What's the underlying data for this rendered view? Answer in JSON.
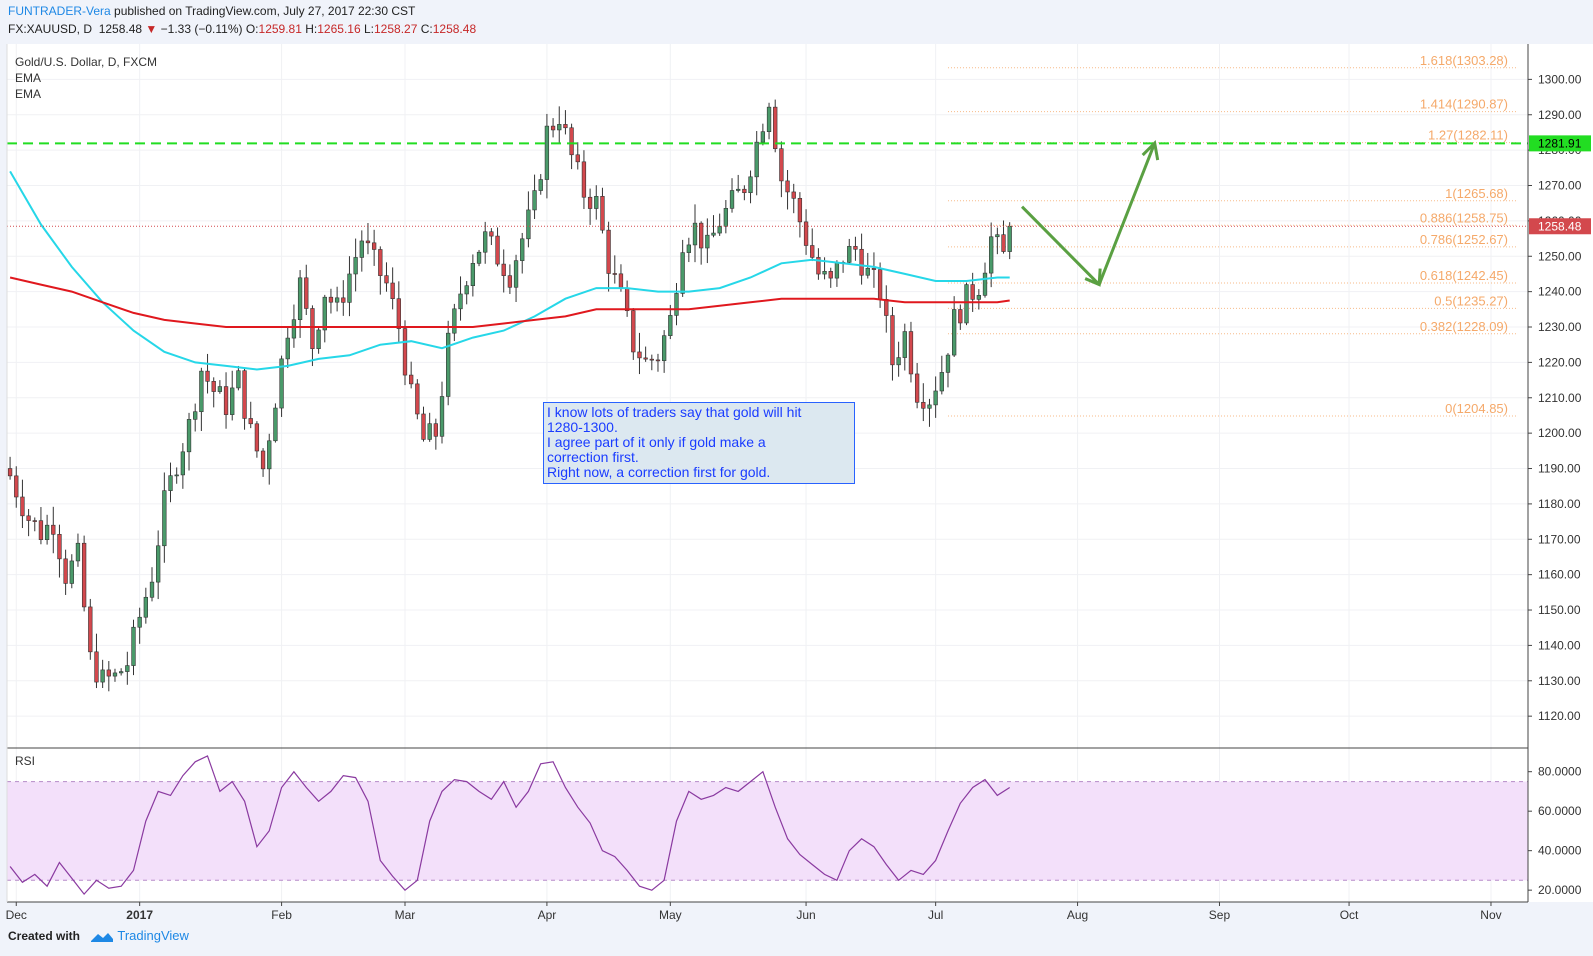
{
  "header": {
    "author": "FUNTRADER-Vera",
    "published": " published on TradingView.com, July 27, 2017 22:30 CST",
    "symbol": "FX:XAUUSD, D",
    "last": "1258.48",
    "change_arrow": "▼",
    "change": "−1.33 (−0.11%)",
    "o_label": "O:",
    "o": "1259.81",
    "h_label": "H:",
    "h": "1265.16",
    "l_label": "L:",
    "l": "1258.27",
    "c_label": "C:",
    "c": "1258.48"
  },
  "legend": {
    "title": "Gold/U.S. Dollar, D, FXCM",
    "ind1": "EMA",
    "ind2": "EMA"
  },
  "rsi_label": "RSI",
  "note": {
    "lines": [
      "I know lots of traders say that gold will hit",
      "1280-1300.",
      "I agree part of it only if gold make a",
      "correction first.",
      "Right now, a correction first for gold."
    ]
  },
  "footer": {
    "created": "Created with",
    "brand": "TradingView"
  },
  "colors": {
    "up": "#4a9a6a",
    "down": "#d3484d",
    "ema_fast": "#26d7e8",
    "ema_slow": "#e0181e",
    "fib": "#f5a96a",
    "resistance": "#22dd22",
    "arrow": "#5aa042",
    "rsi": "#8a3aa0",
    "rsi_band": "#f3e0fa"
  },
  "chart_data": {
    "type": "candlestick",
    "price_range": [
      1111,
      1310
    ],
    "price_ticks": [
      1120,
      1130,
      1140,
      1150,
      1160,
      1170,
      1180,
      1190,
      1200,
      1210,
      1220,
      1230,
      1240,
      1250,
      1260,
      1270,
      1280,
      1290,
      1300
    ],
    "last_price": 1258.48,
    "last_label": "1258.48",
    "resistance": 1281.91,
    "resistance_label": "1281.91",
    "month_labels": [
      "Dec",
      "2017",
      "Feb",
      "Mar",
      "Apr",
      "May",
      "Jun",
      "Jul",
      "Aug",
      "Sep",
      "Oct",
      "Nov"
    ],
    "month_x": [
      1,
      21,
      44,
      64,
      87,
      107,
      129,
      150,
      173,
      196,
      217,
      240
    ],
    "candle_count": 168,
    "axis_bar_range": [
      -0.5,
      246
    ],
    "fib_levels": [
      {
        "label": "1.618(1303.28)",
        "value": 1303.28
      },
      {
        "label": "1.414(1290.87)",
        "value": 1290.87
      },
      {
        "label": "1.27(1282.11)",
        "value": 1282.11
      },
      {
        "label": "1(1265.68)",
        "value": 1265.68
      },
      {
        "label": "0.886(1258.75)",
        "value": 1258.75
      },
      {
        "label": "0.786(1252.67)",
        "value": 1252.67
      },
      {
        "label": "0.618(1242.45)",
        "value": 1242.45
      },
      {
        "label": "0.5(1235.27)",
        "value": 1235.27
      },
      {
        "label": "0.382(1228.09)",
        "value": 1228.09
      },
      {
        "label": "0(1204.85)",
        "value": 1204.85
      }
    ],
    "close_path": [
      [
        0,
        1188
      ],
      [
        3,
        1176
      ],
      [
        5,
        1172
      ],
      [
        7,
        1175
      ],
      [
        9,
        1160
      ],
      [
        11,
        1165
      ],
      [
        13,
        1136
      ],
      [
        15,
        1130
      ],
      [
        17,
        1131
      ],
      [
        19,
        1135
      ],
      [
        21,
        1148
      ],
      [
        23,
        1160
      ],
      [
        25,
        1180
      ],
      [
        27,
        1192
      ],
      [
        29,
        1202
      ],
      [
        31,
        1218
      ],
      [
        33,
        1212
      ],
      [
        35,
        1208
      ],
      [
        37,
        1215
      ],
      [
        39,
        1200
      ],
      [
        41,
        1190
      ],
      [
        43,
        1210
      ],
      [
        45,
        1230
      ],
      [
        47,
        1242
      ],
      [
        49,
        1225
      ],
      [
        51,
        1240
      ],
      [
        53,
        1235
      ],
      [
        55,
        1245
      ],
      [
        57,
        1255
      ],
      [
        59,
        1248
      ],
      [
        61,
        1242
      ],
      [
        63,
        1230
      ],
      [
        65,
        1210
      ],
      [
        67,
        1198
      ],
      [
        69,
        1200
      ],
      [
        71,
        1225
      ],
      [
        73,
        1240
      ],
      [
        75,
        1250
      ],
      [
        77,
        1255
      ],
      [
        79,
        1250
      ],
      [
        81,
        1245
      ],
      [
        83,
        1255
      ],
      [
        85,
        1265
      ],
      [
        87,
        1285
      ],
      [
        89,
        1290
      ],
      [
        91,
        1278
      ],
      [
        93,
        1268
      ],
      [
        95,
        1265
      ],
      [
        97,
        1248
      ],
      [
        99,
        1238
      ],
      [
        101,
        1225
      ],
      [
        103,
        1220
      ],
      [
        105,
        1222
      ],
      [
        107,
        1232
      ],
      [
        109,
        1255
      ],
      [
        111,
        1258
      ],
      [
        113,
        1252
      ],
      [
        115,
        1260
      ],
      [
        117,
        1265
      ],
      [
        119,
        1270
      ],
      [
        121,
        1282
      ],
      [
        123,
        1295
      ],
      [
        125,
        1272
      ],
      [
        127,
        1265
      ],
      [
        129,
        1255
      ],
      [
        131,
        1245
      ],
      [
        133,
        1242
      ],
      [
        135,
        1250
      ],
      [
        137,
        1252
      ],
      [
        139,
        1245
      ],
      [
        141,
        1240
      ],
      [
        143,
        1220
      ],
      [
        145,
        1228
      ],
      [
        147,
        1212
      ],
      [
        149,
        1210
      ],
      [
        151,
        1218
      ],
      [
        153,
        1232
      ],
      [
        155,
        1238
      ],
      [
        157,
        1242
      ],
      [
        159,
        1255
      ],
      [
        161,
        1250
      ],
      [
        162,
        1258.48
      ]
    ],
    "ema_fast": [
      [
        0,
        1274
      ],
      [
        5,
        1259
      ],
      [
        10,
        1247
      ],
      [
        15,
        1237
      ],
      [
        20,
        1229
      ],
      [
        25,
        1223
      ],
      [
        30,
        1220
      ],
      [
        35,
        1219
      ],
      [
        40,
        1218
      ],
      [
        45,
        1219
      ],
      [
        50,
        1221
      ],
      [
        55,
        1222
      ],
      [
        60,
        1225
      ],
      [
        65,
        1226
      ],
      [
        70,
        1224
      ],
      [
        75,
        1227
      ],
      [
        80,
        1229
      ],
      [
        85,
        1233
      ],
      [
        90,
        1238
      ],
      [
        95,
        1241
      ],
      [
        100,
        1241
      ],
      [
        105,
        1240
      ],
      [
        110,
        1240
      ],
      [
        115,
        1241
      ],
      [
        120,
        1244
      ],
      [
        125,
        1248
      ],
      [
        130,
        1249
      ],
      [
        135,
        1248
      ],
      [
        140,
        1247
      ],
      [
        145,
        1245
      ],
      [
        150,
        1243
      ],
      [
        155,
        1243
      ],
      [
        160,
        1244
      ],
      [
        162,
        1244
      ]
    ],
    "ema_slow": [
      [
        0,
        1244
      ],
      [
        5,
        1242
      ],
      [
        10,
        1240
      ],
      [
        15,
        1237
      ],
      [
        20,
        1234
      ],
      [
        25,
        1232
      ],
      [
        30,
        1231
      ],
      [
        35,
        1230
      ],
      [
        40,
        1230
      ],
      [
        45,
        1230
      ],
      [
        50,
        1230
      ],
      [
        55,
        1230
      ],
      [
        60,
        1230
      ],
      [
        65,
        1230
      ],
      [
        70,
        1230
      ],
      [
        75,
        1230
      ],
      [
        80,
        1231
      ],
      [
        85,
        1232
      ],
      [
        90,
        1233
      ],
      [
        95,
        1235
      ],
      [
        100,
        1235
      ],
      [
        105,
        1235
      ],
      [
        110,
        1235
      ],
      [
        115,
        1236
      ],
      [
        120,
        1237
      ],
      [
        125,
        1238
      ],
      [
        130,
        1238
      ],
      [
        135,
        1238
      ],
      [
        140,
        1238
      ],
      [
        145,
        1237
      ],
      [
        150,
        1237
      ],
      [
        155,
        1237
      ],
      [
        160,
        1237
      ],
      [
        162,
        1237.5
      ]
    ],
    "rsi_range": [
      14,
      92
    ],
    "rsi_ticks": [
      20,
      40,
      60,
      80
    ],
    "rsi_tick_labels": [
      "20.0000",
      "40.0000",
      "60.0000",
      "80.0000"
    ],
    "rsi_bands": [
      75,
      25
    ],
    "rsi": [
      [
        0,
        32
      ],
      [
        2,
        24
      ],
      [
        4,
        28
      ],
      [
        6,
        22
      ],
      [
        8,
        34
      ],
      [
        10,
        26
      ],
      [
        12,
        18
      ],
      [
        14,
        25
      ],
      [
        16,
        21
      ],
      [
        18,
        22
      ],
      [
        20,
        30
      ],
      [
        22,
        55
      ],
      [
        24,
        70
      ],
      [
        26,
        68
      ],
      [
        28,
        78
      ],
      [
        30,
        85
      ],
      [
        32,
        88
      ],
      [
        34,
        70
      ],
      [
        36,
        75
      ],
      [
        38,
        65
      ],
      [
        40,
        42
      ],
      [
        42,
        50
      ],
      [
        44,
        72
      ],
      [
        46,
        80
      ],
      [
        48,
        72
      ],
      [
        50,
        65
      ],
      [
        52,
        70
      ],
      [
        54,
        78
      ],
      [
        56,
        77
      ],
      [
        58,
        65
      ],
      [
        60,
        35
      ],
      [
        62,
        27
      ],
      [
        64,
        20
      ],
      [
        66,
        25
      ],
      [
        68,
        55
      ],
      [
        70,
        70
      ],
      [
        72,
        76
      ],
      [
        74,
        75
      ],
      [
        76,
        70
      ],
      [
        78,
        66
      ],
      [
        80,
        75
      ],
      [
        82,
        62
      ],
      [
        84,
        70
      ],
      [
        86,
        84
      ],
      [
        88,
        85
      ],
      [
        90,
        72
      ],
      [
        92,
        62
      ],
      [
        94,
        54
      ],
      [
        96,
        40
      ],
      [
        98,
        37
      ],
      [
        100,
        30
      ],
      [
        102,
        22
      ],
      [
        104,
        20
      ],
      [
        106,
        25
      ],
      [
        108,
        55
      ],
      [
        110,
        70
      ],
      [
        112,
        66
      ],
      [
        114,
        68
      ],
      [
        116,
        72
      ],
      [
        118,
        70
      ],
      [
        120,
        75
      ],
      [
        122,
        80
      ],
      [
        124,
        62
      ],
      [
        126,
        46
      ],
      [
        128,
        38
      ],
      [
        130,
        33
      ],
      [
        132,
        28
      ],
      [
        134,
        25
      ],
      [
        136,
        40
      ],
      [
        138,
        46
      ],
      [
        140,
        42
      ],
      [
        142,
        33
      ],
      [
        144,
        25
      ],
      [
        146,
        30
      ],
      [
        148,
        28
      ],
      [
        150,
        35
      ],
      [
        152,
        50
      ],
      [
        154,
        64
      ],
      [
        156,
        72
      ],
      [
        158,
        76
      ],
      [
        160,
        68
      ],
      [
        162,
        72
      ]
    ]
  }
}
